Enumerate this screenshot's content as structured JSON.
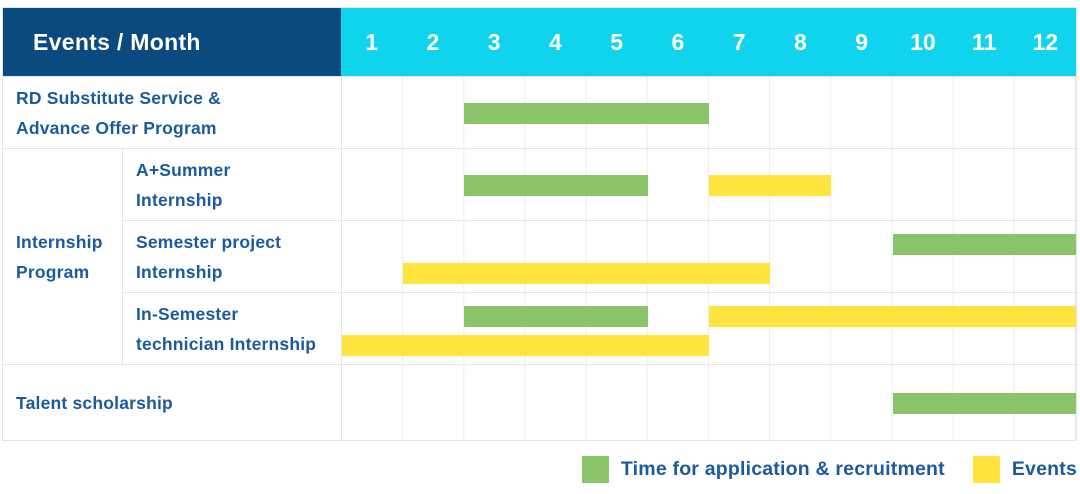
{
  "colors": {
    "header_bg": "#0b4a7e",
    "months_bg": "#10d4ee",
    "header_text": "#ffffff",
    "label_text": "#1b5a9c",
    "green": "#8bc46b",
    "yellow": "#ffe33e",
    "grid": "#e4e4e4",
    "grid_light": "#ececec"
  },
  "header": {
    "title": "Events / Month",
    "months": [
      "1",
      "2",
      "3",
      "4",
      "5",
      "6",
      "7",
      "8",
      "9",
      "10",
      "11",
      "12"
    ]
  },
  "group": {
    "label_lines": [
      "Internship",
      "Program"
    ]
  },
  "rows": [
    {
      "key": "rd-substitute-advance-offer",
      "label_lines": [
        "RD Substitute Service &",
        "Advance Offer Program"
      ],
      "bars": [
        {
          "color": "green",
          "start": 3,
          "end": 6,
          "lane": "mid"
        }
      ]
    },
    {
      "key": "a-plus-summer-internship",
      "label_lines": [
        "A+Summer",
        "Internship"
      ],
      "bars": [
        {
          "color": "green",
          "start": 3,
          "end": 5,
          "lane": "mid"
        },
        {
          "color": "yellow",
          "start": 7,
          "end": 8,
          "lane": "mid"
        }
      ]
    },
    {
      "key": "semester-project-internship",
      "label_lines": [
        "Semester project",
        "Internship"
      ],
      "bars": [
        {
          "color": "green",
          "start": 10,
          "end": 12,
          "lane": "top"
        },
        {
          "color": "yellow",
          "start": 2,
          "end": 7,
          "lane": "bottom"
        }
      ]
    },
    {
      "key": "in-semester-technician-internship",
      "label_lines": [
        "In-Semester",
        "technician Internship"
      ],
      "bars": [
        {
          "color": "green",
          "start": 3,
          "end": 5,
          "lane": "top"
        },
        {
          "color": "yellow",
          "start": 7,
          "end": 12,
          "lane": "top"
        },
        {
          "color": "yellow",
          "start": 1,
          "end": 6,
          "lane": "bottom"
        }
      ]
    },
    {
      "key": "talent-scholarship",
      "label": "Talent scholarship",
      "bars": [
        {
          "color": "green",
          "start": 10,
          "end": 12,
          "lane": "mid"
        }
      ]
    }
  ],
  "legend": [
    {
      "swatch": "green",
      "label": "Time for application & recruitment"
    },
    {
      "swatch": "yellow",
      "label": "Events"
    }
  ],
  "chart_data": {
    "type": "table",
    "title": "Events / Month",
    "x": [
      "1",
      "2",
      "3",
      "4",
      "5",
      "6",
      "7",
      "8",
      "9",
      "10",
      "11",
      "12"
    ],
    "xlabel": "Month",
    "legend_entries": [
      "Time for application & recruitment",
      "Events"
    ],
    "legend_colors": {
      "Time for application & recruitment": "#8bc46b",
      "Events": "#ffe33e"
    },
    "series": [
      {
        "name": "RD Substitute Service & Advance Offer Program",
        "group": "",
        "bars": [
          {
            "type": "Time for application & recruitment",
            "start_month": 3,
            "end_month": 6
          }
        ]
      },
      {
        "name": "A+Summer Internship",
        "group": "Internship Program",
        "bars": [
          {
            "type": "Time for application & recruitment",
            "start_month": 3,
            "end_month": 5
          },
          {
            "type": "Events",
            "start_month": 7,
            "end_month": 8
          }
        ]
      },
      {
        "name": "Semester project Internship",
        "group": "Internship Program",
        "bars": [
          {
            "type": "Time for application & recruitment",
            "start_month": 10,
            "end_month": 12
          },
          {
            "type": "Events",
            "start_month": 2,
            "end_month": 7
          }
        ]
      },
      {
        "name": "In-Semester technician Internship",
        "group": "Internship Program",
        "bars": [
          {
            "type": "Time for application & recruitment",
            "start_month": 3,
            "end_month": 5
          },
          {
            "type": "Events",
            "start_month": 7,
            "end_month": 12
          },
          {
            "type": "Events",
            "start_month": 1,
            "end_month": 6
          }
        ]
      },
      {
        "name": "Talent scholarship",
        "group": "",
        "bars": [
          {
            "type": "Time for application & recruitment",
            "start_month": 10,
            "end_month": 12
          }
        ]
      }
    ]
  }
}
